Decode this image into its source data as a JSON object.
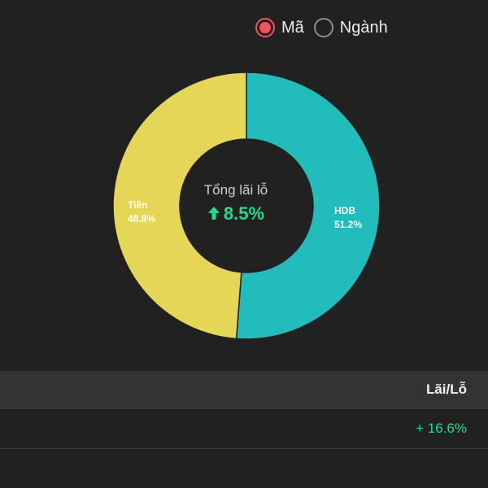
{
  "view_toggle": {
    "options": [
      {
        "label": "Mã",
        "selected": true
      },
      {
        "label": "Ngành",
        "selected": false
      }
    ],
    "selected_color": "#f0545e"
  },
  "chart_data": {
    "type": "pie",
    "style": "donut",
    "center_title": "Tổng lãi lỗ",
    "center_value": "8.5%",
    "center_direction": "up",
    "slices": [
      {
        "label": "HDB",
        "percent_label": "51.2%",
        "value": 51.2,
        "color": "#22bcbc"
      },
      {
        "label": "Tiền",
        "percent_label": "48.8%",
        "value": 48.8,
        "color": "#e5d658"
      }
    ]
  },
  "table": {
    "columns": [
      "Lãi/Lỗ"
    ],
    "rows": [
      [
        "+ 16.6%"
      ]
    ],
    "positive_color": "#1fdc90"
  }
}
